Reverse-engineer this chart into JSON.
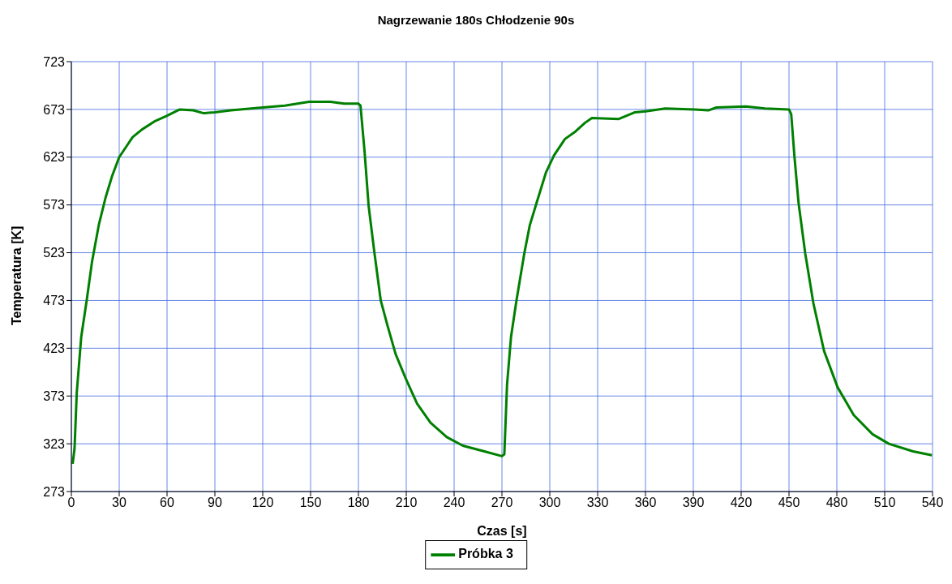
{
  "chart_data": {
    "type": "line",
    "title": "Nagrzewanie 180s Chłodzenie 90s",
    "xlabel": "Czas [s]",
    "ylabel": "Temperatura [K]",
    "x": [
      0.8,
      2,
      3.4,
      6.2,
      9.6,
      13,
      17.2,
      21.5,
      25.7,
      30,
      34,
      38.4,
      44.3,
      52.7,
      59.5,
      68,
      76.4,
      83,
      89.9,
      100,
      120,
      133.8,
      149,
      162.5,
      171,
      180,
      181.3,
      183.9,
      186.4,
      189.8,
      194,
      198.2,
      203.3,
      210,
      216.8,
      225.2,
      235.4,
      245.5,
      259,
      270,
      271.5,
      273.2,
      275.7,
      279.1,
      284.1,
      287.5,
      291.7,
      297.6,
      302.7,
      309.5,
      316.2,
      322.1,
      326.4,
      343.3,
      353.4,
      360.2,
      372.4,
      390.9,
      399.4,
      404.5,
      423,
      434.9,
      450,
      451.4,
      453.4,
      456,
      460.2,
      465.3,
      472,
      480.5,
      490.6,
      502.4,
      512.6,
      527.8,
      539.6
    ],
    "series": [
      {
        "name": "Próbka 3",
        "color": "#008000",
        "values": [
          302,
          318,
          377,
          435,
          473,
          514,
          552,
          581,
          604,
          623,
          633,
          644,
          652,
          661,
          666,
          673,
          672,
          669,
          670,
          672,
          675,
          677,
          681,
          681,
          679,
          679,
          677,
          628,
          572,
          526,
          473,
          447,
          417,
          390,
          365,
          345,
          330,
          321,
          315,
          310,
          312,
          385,
          435,
          473,
          523,
          552,
          575,
          607,
          625,
          642,
          650,
          659,
          664,
          663,
          670,
          671,
          674,
          673,
          672,
          675,
          676,
          674,
          673,
          668,
          624,
          575,
          522,
          470,
          420,
          382,
          353,
          333,
          323,
          315,
          311
        ]
      }
    ],
    "xlim": [
      0,
      540
    ],
    "xticks": [
      0,
      30,
      60,
      90,
      120,
      150,
      180,
      210,
      240,
      270,
      300,
      330,
      360,
      390,
      420,
      450,
      480,
      510,
      540
    ],
    "ylim": [
      273,
      723
    ],
    "yticks": [
      273,
      323,
      373,
      423,
      473,
      523,
      573,
      623,
      673,
      723
    ],
    "grid": true,
    "legend": "bottom",
    "marker": "none",
    "line_style": "solid"
  }
}
